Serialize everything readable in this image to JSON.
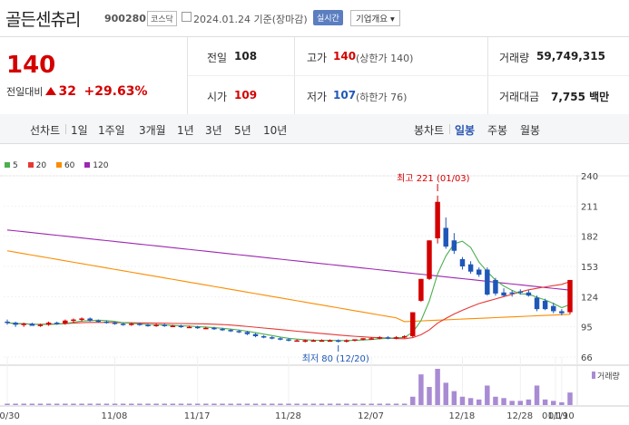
{
  "header": {
    "stock_name": "골든센츄리",
    "code": "900280",
    "market": "코스닥",
    "date": "2024.01.24 기준(장마감)",
    "realtime_label": "실시간",
    "company_button": "기업개요 ▾"
  },
  "quote": {
    "price": "140",
    "change_label": "전일대비",
    "change_value": "32",
    "change_pct": "+29.63%",
    "prev_close_label": "전일",
    "prev_close": "108",
    "high_label": "고가",
    "high": "140",
    "upper_limit": "(상한가 140)",
    "volume_label": "거래량",
    "volume": "59,749,315",
    "open_label": "시가",
    "open": "109",
    "low_label": "저가",
    "low": "107",
    "lower_limit": "(하한가 76)",
    "amount_label": "거래대금",
    "amount": "7,755 백만"
  },
  "tabs": {
    "line_chart": "선차트",
    "periods": [
      "1일",
      "1주일",
      "3개월",
      "1년",
      "3년",
      "5년",
      "10년"
    ],
    "candle_chart": "봉차트",
    "candle_periods": [
      "일봉",
      "주봉",
      "월봉"
    ],
    "active_candle": "일봉"
  },
  "colors": {
    "up": "#d40000",
    "down": "#1f57b8",
    "ma5": "#4caf50",
    "ma20": "#e53935",
    "ma60": "#fb8c00",
    "ma120": "#9c27b0"
  },
  "chart_data": {
    "type": "candlestick",
    "legend": [
      "5",
      "20",
      "60",
      "120"
    ],
    "y_ticks": [
      240,
      211,
      182,
      153,
      124,
      95,
      66
    ],
    "ylim": [
      66,
      240
    ],
    "x_tick_labels": [
      "10/30",
      "11/08",
      "11/17",
      "11/28",
      "12/07",
      "12/18",
      "12/28",
      "01/10",
      "01/19"
    ],
    "high_annotation": "최고 221 (01/03)",
    "low_annotation": "최저 80 (12/20)",
    "volume_label": "거래량",
    "candles": [
      [
        100,
        102,
        97,
        99
      ],
      [
        99,
        100,
        95,
        97
      ],
      [
        97,
        99,
        95,
        98
      ],
      [
        98,
        99,
        96,
        96
      ],
      [
        96,
        98,
        95,
        97
      ],
      [
        97,
        100,
        96,
        99
      ],
      [
        99,
        100,
        97,
        98
      ],
      [
        98,
        102,
        97,
        101
      ],
      [
        101,
        103,
        99,
        102
      ],
      [
        102,
        104,
        100,
        103
      ],
      [
        103,
        104,
        100,
        101
      ],
      [
        101,
        102,
        99,
        100
      ],
      [
        100,
        101,
        98,
        99
      ],
      [
        99,
        100,
        97,
        98
      ],
      [
        98,
        99,
        96,
        97
      ],
      [
        97,
        99,
        96,
        98
      ],
      [
        98,
        99,
        96,
        97
      ],
      [
        97,
        98,
        95,
        96
      ],
      [
        96,
        98,
        95,
        97
      ],
      [
        97,
        98,
        95,
        96
      ],
      [
        96,
        97,
        95,
        96
      ],
      [
        96,
        97,
        94,
        95
      ],
      [
        95,
        96,
        94,
        95
      ],
      [
        95,
        96,
        93,
        94
      ],
      [
        94,
        95,
        93,
        94
      ],
      [
        94,
        95,
        92,
        93
      ],
      [
        93,
        94,
        91,
        92
      ],
      [
        92,
        93,
        90,
        91
      ],
      [
        91,
        92,
        89,
        90
      ],
      [
        90,
        91,
        87,
        88
      ],
      [
        88,
        89,
        85,
        86
      ],
      [
        86,
        87,
        84,
        85
      ],
      [
        85,
        86,
        83,
        84
      ],
      [
        84,
        85,
        82,
        83
      ],
      [
        83,
        84,
        81,
        82
      ],
      [
        82,
        83,
        81,
        82
      ],
      [
        82,
        83,
        80,
        82
      ],
      [
        82,
        83,
        81,
        82
      ],
      [
        82,
        83,
        81,
        82
      ],
      [
        82,
        83,
        81,
        82
      ],
      [
        82,
        83,
        80,
        81
      ],
      [
        81,
        83,
        80,
        82
      ],
      [
        82,
        83,
        81,
        83
      ],
      [
        83,
        84,
        82,
        84
      ],
      [
        84,
        85,
        83,
        84
      ],
      [
        84,
        86,
        83,
        85
      ],
      [
        85,
        86,
        83,
        84
      ],
      [
        84,
        86,
        83,
        85
      ],
      [
        85,
        87,
        84,
        86
      ],
      [
        86,
        109,
        85,
        109
      ],
      [
        120,
        141,
        119,
        141
      ],
      [
        141,
        178,
        140,
        178
      ],
      [
        180,
        221,
        175,
        215
      ],
      [
        190,
        200,
        170,
        172
      ],
      [
        178,
        185,
        165,
        168
      ],
      [
        160,
        162,
        150,
        153
      ],
      [
        155,
        158,
        146,
        148
      ],
      [
        150,
        152,
        143,
        145
      ],
      [
        150,
        152,
        125,
        126
      ],
      [
        140,
        142,
        125,
        127
      ],
      [
        128,
        132,
        124,
        125
      ],
      [
        128,
        130,
        124,
        127
      ],
      [
        129,
        131,
        126,
        128
      ],
      [
        128,
        130,
        124,
        125
      ],
      [
        123,
        125,
        110,
        112
      ],
      [
        120,
        122,
        111,
        112
      ],
      [
        115,
        118,
        108,
        110
      ],
      [
        110,
        112,
        106,
        108
      ],
      [
        109,
        140,
        107,
        140
      ]
    ],
    "volume": [
      1,
      1,
      1,
      1,
      1,
      1,
      1,
      1,
      1,
      1,
      1,
      1,
      1,
      1,
      1,
      1,
      1,
      1,
      1,
      1,
      1,
      1,
      1,
      1,
      1,
      1,
      1,
      1,
      1,
      1,
      1,
      1,
      1,
      1,
      1,
      1,
      1,
      1,
      1,
      1,
      1,
      1,
      1,
      1,
      1,
      1,
      1,
      1,
      1,
      6,
      22,
      13,
      26,
      16,
      10,
      6,
      5,
      4,
      14,
      6,
      5,
      3,
      3,
      4,
      14,
      4,
      3,
      2,
      9
    ]
  }
}
